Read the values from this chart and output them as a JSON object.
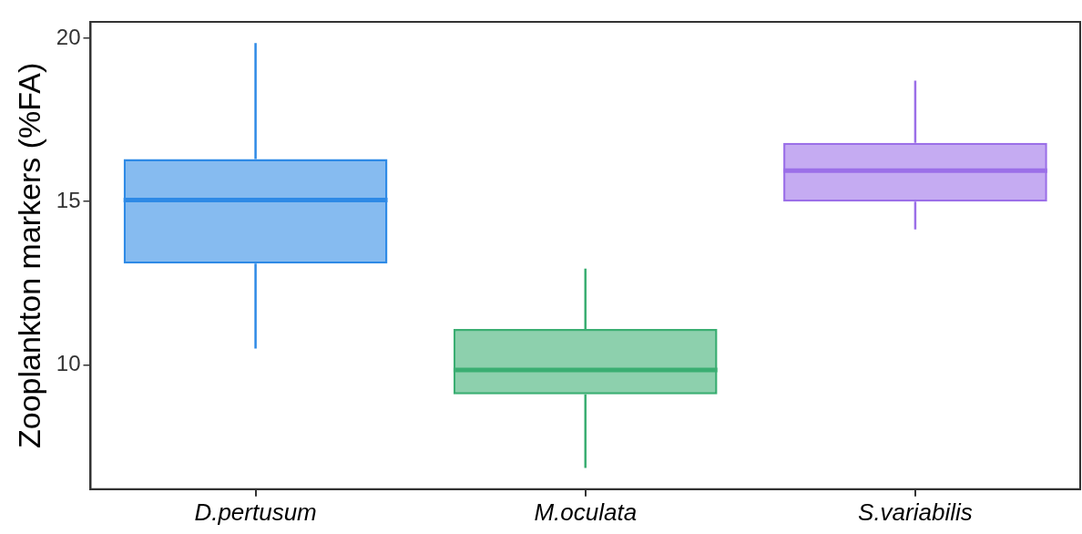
{
  "chart_data": {
    "type": "box",
    "ylabel": "Zooplankton markers (%FA)",
    "categories": [
      "D.pertusum",
      "M.oculata",
      "S.variabilis"
    ],
    "boxes": [
      {
        "low": 10.5,
        "q1": 13.1,
        "median": 15.05,
        "q3": 16.3,
        "high": 19.85
      },
      {
        "low": 6.85,
        "q1": 9.1,
        "median": 9.85,
        "q3": 11.1,
        "high": 12.95
      },
      {
        "low": 14.15,
        "q1": 15.0,
        "median": 15.95,
        "q3": 16.8,
        "high": 18.7
      }
    ],
    "colors": [
      "#2e8ae6",
      "#3aae72",
      "#9b6fe8"
    ],
    "ylim": [
      6.2,
      20.5
    ],
    "yticks": [
      10,
      15,
      20
    ],
    "grid": false,
    "legend": false
  }
}
